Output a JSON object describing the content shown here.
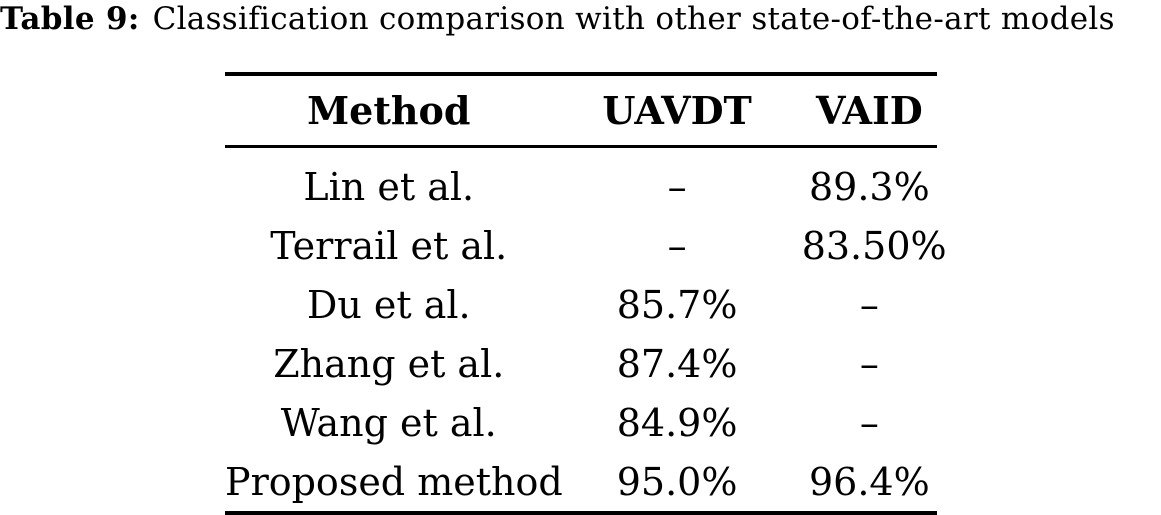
{
  "caption": {
    "label": "Table 9:",
    "text": "Classification comparison with other state-of-the-art models"
  },
  "table": {
    "columns": [
      "Method",
      "UAVDT",
      "VAID"
    ],
    "rows": [
      [
        "Lin et al.",
        "–",
        "89.3%"
      ],
      [
        "Terrail et al.",
        "–",
        "83.50%"
      ],
      [
        "Du et al.",
        "85.7%",
        "–"
      ],
      [
        "Zhang et al.",
        "87.4%",
        "–"
      ],
      [
        "Wang et al.",
        "84.9%",
        "–"
      ],
      [
        "Proposed method",
        "95.0%",
        "96.4%"
      ]
    ]
  },
  "colors": {
    "text": "#000000",
    "background": "#ffffff",
    "rule": "#000000"
  }
}
